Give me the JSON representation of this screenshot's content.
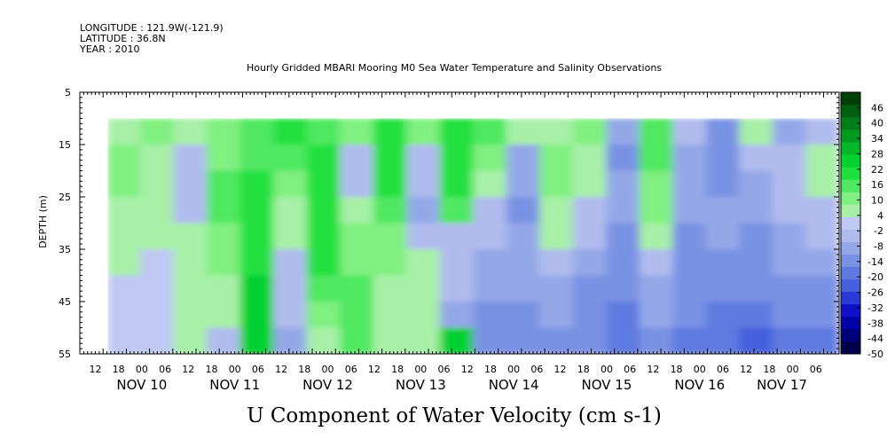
{
  "header": {
    "longitude": "LONGITUDE : 121.9W(-121.9)",
    "latitude": "LATITUDE : 36.8N",
    "year": "YEAR : 2010"
  },
  "chart_data": {
    "type": "heatmap",
    "title": "Hourly Gridded MBARI Mooring M0 Sea Water Temperature and Salinity Observations",
    "xlabel": "U Component of Water Velocity (cm s-1)",
    "ylabel": "DEPTH (m)",
    "x_range": [
      "2010-11-09T08:00",
      "2010-11-17T12:00"
    ],
    "data_x_range": [
      "2010-11-09T15:00",
      "2010-11-17T12:00"
    ],
    "ylim": [
      55,
      5
    ],
    "data_depth_range": [
      10,
      55
    ],
    "y_ticks": [
      "5",
      "15",
      "25",
      "35",
      "45",
      "55"
    ],
    "x_hour_ticks": [
      "12",
      "18",
      "00",
      "06",
      "12",
      "18",
      "00",
      "06",
      "12",
      "18",
      "00",
      "06",
      "12",
      "18",
      "00",
      "06",
      "12",
      "18",
      "00",
      "06",
      "12",
      "18",
      "00",
      "06",
      "12",
      "18",
      "00",
      "06",
      "12",
      "18",
      "00",
      "06"
    ],
    "x_day_labels": [
      "NOV 10",
      "NOV 11",
      "NOV 12",
      "NOV 13",
      "NOV 14",
      "NOV 15",
      "NOV 16",
      "NOV 17"
    ],
    "colorbar": {
      "labels": [
        "46",
        "40",
        "34",
        "28",
        "22",
        "16",
        "10",
        "4",
        "-2",
        "-8",
        "-14",
        "-20",
        "-26",
        "-32",
        "-38",
        "-44",
        "-50"
      ],
      "range": [
        -50,
        52
      ],
      "colors": [
        "#00004a",
        "#00007a",
        "#0000a6",
        "#1010c8",
        "#2a3ad6",
        "#4460dc",
        "#5e7ae0",
        "#7a92e4",
        "#94a8e8",
        "#b0bcee",
        "#c0c8f4",
        "#a8f0a8",
        "#80f080",
        "#50e860",
        "#20e040",
        "#00d030",
        "#00b828",
        "#009a20",
        "#007c18",
        "#005e10",
        "#004008"
      ]
    },
    "columns": [
      {
        "x": "NOV 09 15:00",
        "u": [
          8,
          9,
          10,
          8,
          6,
          4,
          3,
          2,
          1
        ]
      },
      {
        "x": "NOV 10 00:00",
        "u": [
          10,
          8,
          6,
          5,
          4,
          3,
          2,
          1,
          0
        ]
      },
      {
        "x": "NOV 10 09:00",
        "u": [
          4,
          -3,
          -4,
          -2,
          4,
          6,
          8,
          8,
          6
        ]
      },
      {
        "x": "NOV 10 18:00",
        "u": [
          10,
          12,
          14,
          14,
          12,
          10,
          8,
          4,
          -2
        ]
      },
      {
        "x": "NOV 11 03:00",
        "u": [
          14,
          16,
          18,
          20,
          20,
          22,
          24,
          26,
          24
        ]
      },
      {
        "x": "NOV 11 12:00",
        "u": [
          18,
          14,
          10,
          8,
          6,
          -2,
          -4,
          -6,
          -8
        ]
      },
      {
        "x": "NOV 11 21:00",
        "u": [
          16,
          18,
          20,
          22,
          20,
          18,
          14,
          10,
          6
        ]
      },
      {
        "x": "NOV 12 06:00",
        "u": [
          12,
          -2,
          -4,
          8,
          10,
          12,
          14,
          16,
          14
        ]
      },
      {
        "x": "NOV 12 15:00",
        "u": [
          20,
          22,
          18,
          14,
          12,
          10,
          8,
          6,
          4
        ]
      },
      {
        "x": "NOV 13 00:00",
        "u": [
          10,
          -4,
          -6,
          -8,
          -4,
          4,
          6,
          8,
          6
        ]
      },
      {
        "x": "NOV 13 09:00",
        "u": [
          22,
          20,
          18,
          16,
          -2,
          -4,
          -6,
          -8,
          24
        ]
      },
      {
        "x": "NOV 13 18:00",
        "u": [
          14,
          10,
          6,
          -4,
          -6,
          -8,
          -10,
          -12,
          -14
        ]
      },
      {
        "x": "NOV 14 03:00",
        "u": [
          6,
          -8,
          -10,
          -12,
          -10,
          -8,
          -10,
          -12,
          -16
        ]
      },
      {
        "x": "NOV 14 12:00",
        "u": [
          8,
          10,
          12,
          8,
          4,
          -4,
          -8,
          -10,
          -12
        ]
      },
      {
        "x": "NOV 14 21:00",
        "u": [
          12,
          6,
          4,
          -2,
          -6,
          -10,
          -12,
          -14,
          -16
        ]
      },
      {
        "x": "NOV 15 06:00",
        "u": [
          -10,
          -12,
          -10,
          -8,
          -12,
          -14,
          -16,
          -18,
          -20
        ]
      },
      {
        "x": "NOV 15 15:00",
        "u": [
          14,
          16,
          12,
          10,
          8,
          -4,
          -8,
          -10,
          -12
        ]
      },
      {
        "x": "NOV 16 00:00",
        "u": [
          -6,
          -8,
          -10,
          -10,
          -12,
          -14,
          -14,
          -16,
          -18
        ]
      },
      {
        "x": "NOV 16 09:00",
        "u": [
          -16,
          -14,
          -12,
          -10,
          -10,
          -12,
          -16,
          -18,
          -20
        ]
      },
      {
        "x": "NOV 16 18:00",
        "u": [
          8,
          -6,
          -8,
          -10,
          -12,
          -14,
          -16,
          -18,
          -22
        ]
      },
      {
        "x": "NOV 17 03:00",
        "u": [
          -8,
          -6,
          -4,
          -6,
          -8,
          -10,
          -14,
          -16,
          -20
        ]
      },
      {
        "x": "NOV 17 12:00",
        "u": [
          -4,
          4,
          6,
          -2,
          -6,
          -8,
          -12,
          -14,
          -18
        ]
      }
    ]
  }
}
